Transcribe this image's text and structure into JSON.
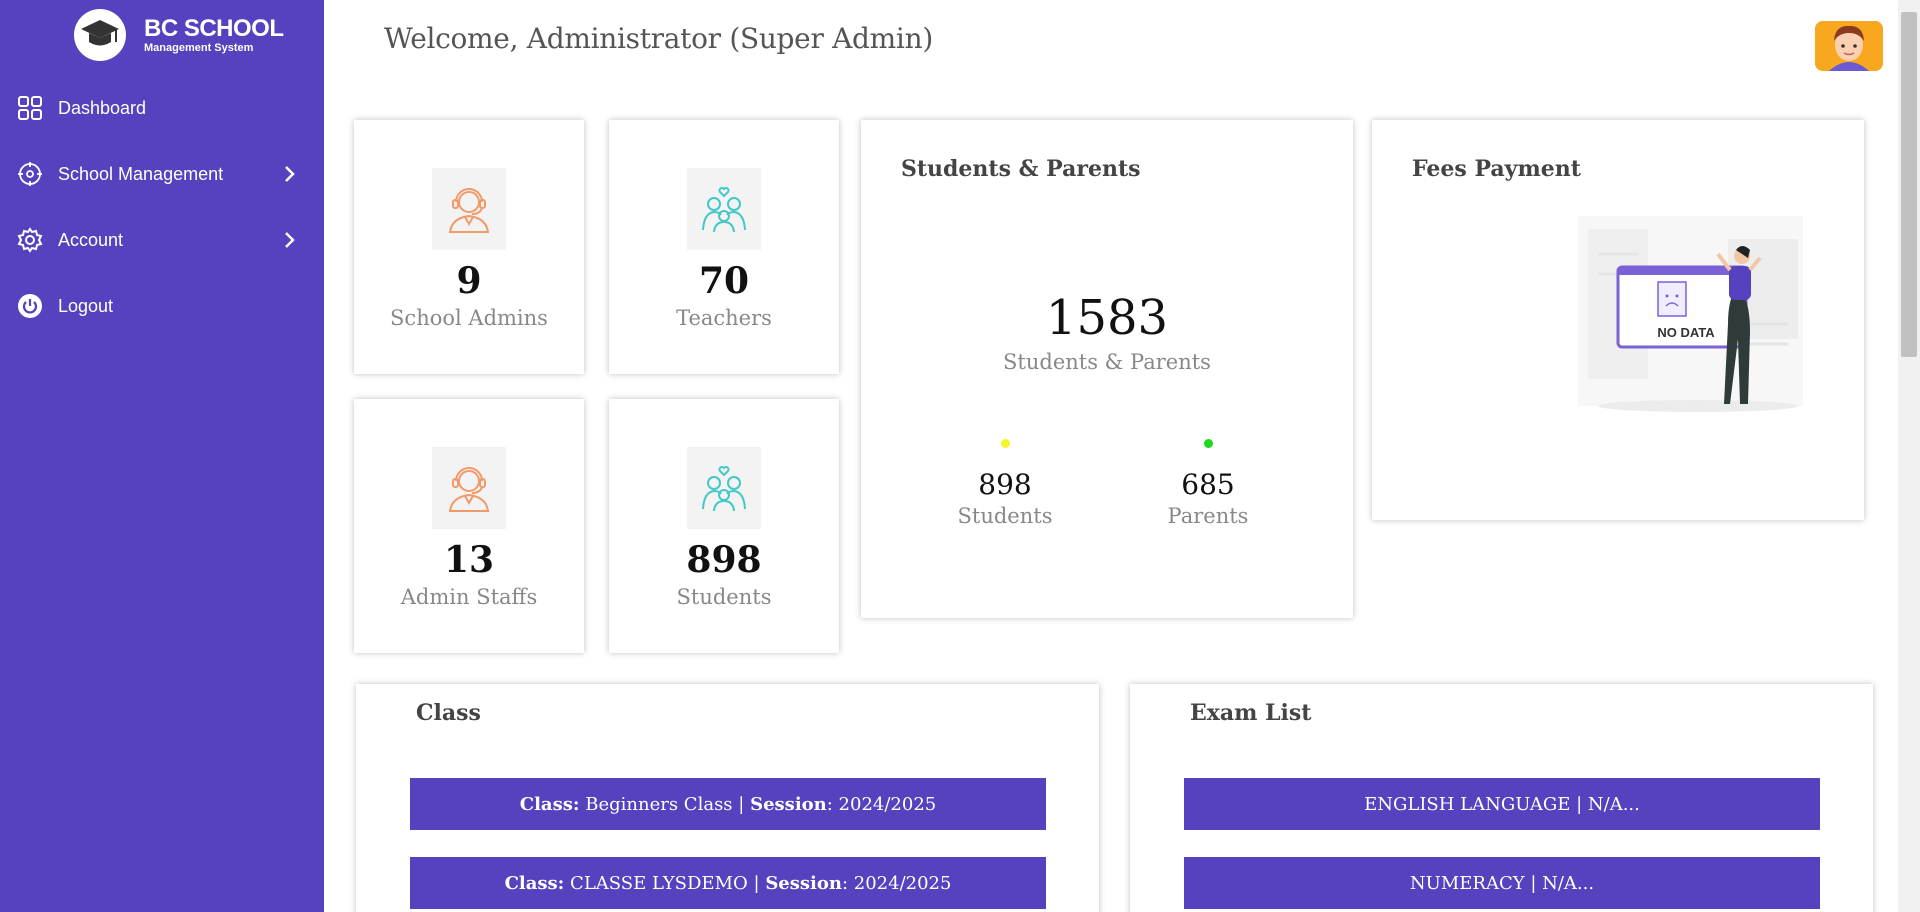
{
  "brand": {
    "title": "BC SCHOOL",
    "subtitle": "Management System"
  },
  "sidebar": {
    "items": [
      {
        "label": "Dashboard",
        "icon": "grid-icon"
      },
      {
        "label": "School Management",
        "icon": "school-management-icon",
        "has_arrow": true
      },
      {
        "label": "Account",
        "icon": "gear-icon",
        "has_arrow": true
      },
      {
        "label": "Logout",
        "icon": "power-icon"
      }
    ]
  },
  "header": {
    "welcome": "Welcome, Administrator (Super Admin)"
  },
  "stats": {
    "school_admins": {
      "value": "9",
      "label": "School Admins",
      "icon": "admin-headset-icon"
    },
    "teachers": {
      "value": "70",
      "label": "Teachers",
      "icon": "family-heart-icon"
    },
    "admin_staffs": {
      "value": "13",
      "label": "Admin Staffs",
      "icon": "admin-headset-icon"
    },
    "students": {
      "value": "898",
      "label": "Students",
      "icon": "family-heart-icon"
    }
  },
  "students_parents": {
    "title": "Students & Parents",
    "total": "1583",
    "total_label": "Students & Parents",
    "students_value": "898",
    "students_label": "Students",
    "parents_value": "685",
    "parents_label": "Parents",
    "students_color": "#f5f52a",
    "parents_color": "#1ed81e"
  },
  "fees": {
    "title": "Fees Payment",
    "illustration_text": "NO DATA"
  },
  "classes": {
    "title": "Class",
    "items": [
      {
        "class_label": "Class:",
        "class_name": "Beginners Class",
        "sep": "|",
        "session_label": "Session",
        "session": ": 2024/2025"
      },
      {
        "class_label": "Class:",
        "class_name": "CLASSE LYSDEMO",
        "sep": "|",
        "session_label": "Session",
        "session": ": 2024/2025"
      }
    ]
  },
  "exams": {
    "title": "Exam List",
    "items": [
      {
        "label": "ENGLISH LANGUAGE | N/A..."
      },
      {
        "label": "NUMERACY | N/A..."
      }
    ]
  },
  "colors": {
    "sidebar": "#5641be",
    "accent": "#5641be",
    "icon_orange": "#f29a6a",
    "icon_teal": "#44c7c7"
  }
}
